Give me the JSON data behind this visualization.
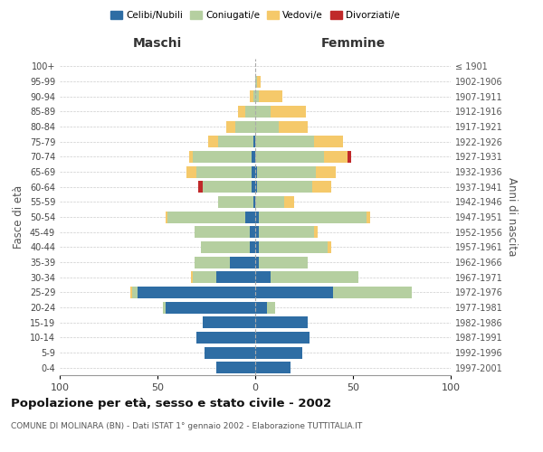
{
  "age_groups": [
    "0-4",
    "5-9",
    "10-14",
    "15-19",
    "20-24",
    "25-29",
    "30-34",
    "35-39",
    "40-44",
    "45-49",
    "50-54",
    "55-59",
    "60-64",
    "65-69",
    "70-74",
    "75-79",
    "80-84",
    "85-89",
    "90-94",
    "95-99",
    "100+"
  ],
  "birth_years": [
    "1997-2001",
    "1992-1996",
    "1987-1991",
    "1982-1986",
    "1977-1981",
    "1972-1976",
    "1967-1971",
    "1962-1966",
    "1957-1961",
    "1952-1956",
    "1947-1951",
    "1942-1946",
    "1937-1941",
    "1932-1936",
    "1927-1931",
    "1922-1926",
    "1917-1921",
    "1912-1916",
    "1907-1911",
    "1902-1906",
    "≤ 1901"
  ],
  "males": {
    "celibi": [
      20,
      26,
      30,
      27,
      46,
      60,
      20,
      13,
      3,
      3,
      5,
      1,
      2,
      2,
      2,
      1,
      0,
      0,
      0,
      0,
      0
    ],
    "coniugati": [
      0,
      0,
      0,
      0,
      1,
      3,
      12,
      18,
      25,
      28,
      40,
      18,
      25,
      28,
      30,
      18,
      10,
      5,
      1,
      0,
      0
    ],
    "vedovi": [
      0,
      0,
      0,
      0,
      0,
      1,
      1,
      0,
      0,
      0,
      1,
      0,
      0,
      5,
      2,
      5,
      5,
      4,
      2,
      0,
      0
    ],
    "divorziati": [
      0,
      0,
      0,
      0,
      0,
      0,
      0,
      0,
      0,
      0,
      0,
      0,
      2,
      0,
      0,
      0,
      0,
      0,
      0,
      0,
      0
    ]
  },
  "females": {
    "nubili": [
      18,
      24,
      28,
      27,
      6,
      40,
      8,
      2,
      2,
      2,
      2,
      0,
      1,
      1,
      0,
      0,
      0,
      0,
      0,
      0,
      0
    ],
    "coniugate": [
      0,
      0,
      0,
      0,
      4,
      40,
      45,
      25,
      35,
      28,
      55,
      15,
      28,
      30,
      35,
      30,
      12,
      8,
      2,
      1,
      0
    ],
    "vedove": [
      0,
      0,
      0,
      0,
      0,
      0,
      0,
      0,
      2,
      2,
      2,
      5,
      10,
      10,
      12,
      15,
      15,
      18,
      12,
      2,
      0
    ],
    "divorziate": [
      0,
      0,
      0,
      0,
      0,
      0,
      0,
      0,
      0,
      0,
      0,
      0,
      0,
      0,
      2,
      0,
      0,
      0,
      0,
      0,
      0
    ]
  },
  "color_celibi": "#2e6da4",
  "color_coniugati": "#b5cfa0",
  "color_vedovi": "#f5c96a",
  "color_divorziati": "#c0292a",
  "title": "Popolazione per età, sesso e stato civile - 2002",
  "subtitle": "COMUNE DI MOLINARA (BN) - Dati ISTAT 1° gennaio 2002 - Elaborazione TUTTITALIA.IT",
  "ylabel_left": "Fasce di età",
  "ylabel_right": "Anni di nascita",
  "xlabel_left": "Maschi",
  "xlabel_right": "Femmine",
  "xlim": 100,
  "bg_color": "#ffffff",
  "grid_color": "#cccccc"
}
